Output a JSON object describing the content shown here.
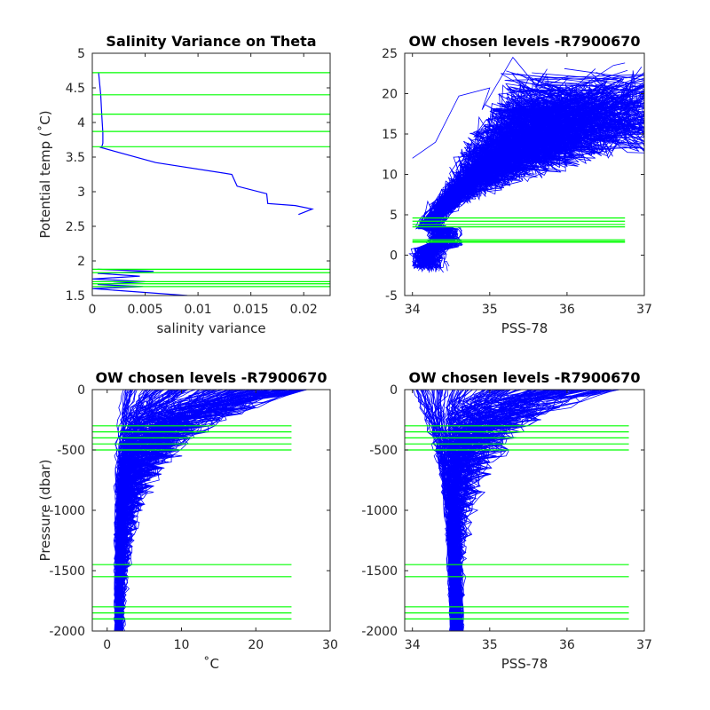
{
  "chart_data": [
    {
      "type": "line",
      "title": "Salinity Variance on Theta",
      "xlabel": "salinity variance",
      "ylabel": "Potential temp (˚C)",
      "xlim": [
        0,
        0.0225
      ],
      "ylim": [
        1.5,
        5
      ],
      "xticks": [
        0,
        0.005,
        0.01,
        0.015,
        0.02
      ],
      "xtick_labels": [
        "0",
        "0.005",
        "0.01",
        "0.015",
        "0.02"
      ],
      "yticks": [
        1.5,
        2,
        2.5,
        3,
        3.5,
        4,
        4.5,
        5
      ],
      "ytick_labels": [
        "1.5",
        "2",
        "2.5",
        "3",
        "3.5",
        "4",
        "4.5",
        "5"
      ],
      "series": [
        {
          "color": "#0000ff",
          "x": [
            0.0006,
            0.0008,
            0.0009,
            0.001,
            0.001,
            0.0009,
            0.0008,
            0.006,
            0.0132,
            0.0137,
            0.0165,
            0.0166,
            0.0192,
            0.0208,
            0.0195
          ],
          "y": [
            4.72,
            4.4,
            4.1,
            3.85,
            3.7,
            3.65,
            3.64,
            3.42,
            3.25,
            3.08,
            2.97,
            2.83,
            2.8,
            2.75,
            2.67
          ]
        },
        {
          "color": "#0000ff",
          "x": [
            0.0005,
            0.0058,
            0.0005,
            0.0045,
            0.0,
            0.005,
            0.0005,
            0.0048,
            0.0,
            0.009
          ],
          "y": [
            1.88,
            1.85,
            1.82,
            1.78,
            1.74,
            1.7,
            1.66,
            1.63,
            1.6,
            1.5
          ]
        }
      ],
      "hlines": [
        4.72,
        4.4,
        4.12,
        3.87,
        3.65,
        1.88,
        1.83,
        1.7,
        1.67,
        1.63
      ],
      "hline_xrange": [
        0,
        0.0225
      ],
      "hline_color": "#00ff00"
    },
    {
      "type": "line",
      "title": "OW chosen levels -R7900670",
      "xlabel": "PSS-78",
      "ylabel": "",
      "xlim": [
        33.9,
        37
      ],
      "ylim": [
        -5,
        25
      ],
      "xticks": [
        34,
        35,
        36,
        37
      ],
      "xtick_labels": [
        "34",
        "35",
        "36",
        "37"
      ],
      "yticks": [
        -5,
        0,
        5,
        10,
        15,
        20,
        25
      ],
      "ytick_labels": [
        "-5",
        "0",
        "5",
        "10",
        "15",
        "20",
        "25"
      ],
      "description": "Theta-salinity profiles (many overlapping blue traces)",
      "hlines": [
        4.6,
        4.2,
        3.8,
        3.5,
        1.9,
        1.7,
        1.6
      ],
      "hline_xrange": [
        34.0,
        36.75
      ],
      "hline_color": "#00ff00"
    },
    {
      "type": "line",
      "title": "OW chosen levels -R7900670",
      "xlabel": "˚C",
      "ylabel": "Pressure (dbar)",
      "xlim": [
        -2,
        30
      ],
      "ylim": [
        -2000,
        0
      ],
      "xticks": [
        0,
        10,
        20,
        30
      ],
      "xtick_labels": [
        "0",
        "10",
        "20",
        "30"
      ],
      "yticks": [
        -2000,
        -1500,
        -1000,
        -500,
        0
      ],
      "ytick_labels": [
        "-2000",
        "-1500",
        "-1000",
        "-500",
        "0"
      ],
      "description": "Temperature vs pressure profiles",
      "hlines": [
        -300,
        -350,
        -400,
        -450,
        -500,
        -1450,
        -1550,
        -1800,
        -1850,
        -1900
      ],
      "hline_xrange": [
        -2,
        24.8
      ],
      "hline_color": "#00ff00"
    },
    {
      "type": "line",
      "title": "OW chosen levels -R7900670",
      "xlabel": "PSS-78",
      "ylabel": "",
      "xlim": [
        33.9,
        37
      ],
      "ylim": [
        -2000,
        0
      ],
      "xticks": [
        34,
        35,
        36,
        37
      ],
      "xtick_labels": [
        "34",
        "35",
        "36",
        "37"
      ],
      "yticks": [
        -2000,
        -1500,
        -1000,
        -500,
        0
      ],
      "ytick_labels": [
        "-2000",
        "-1500",
        "-1000",
        "-500",
        "0"
      ],
      "description": "Salinity vs pressure profiles",
      "hlines": [
        -300,
        -350,
        -400,
        -450,
        -500,
        -1450,
        -1550,
        -1800,
        -1850,
        -1900
      ],
      "hline_xrange": [
        33.9,
        36.8
      ],
      "hline_color": "#00ff00"
    }
  ]
}
